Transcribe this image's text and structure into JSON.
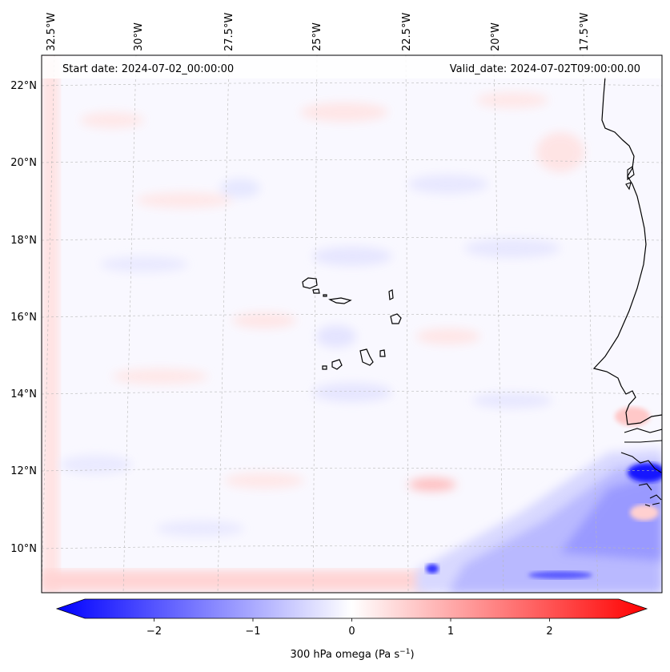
{
  "map": {
    "start_date": "Start date: 2024-07-02_00:00:00",
    "valid_date": "Valid_date: 2024-07-02T09:00:00.00",
    "lon_labels": [
      "32.5°W",
      "30°W",
      "27.5°W",
      "25°W",
      "22.5°W",
      "20°W",
      "17.5°W"
    ],
    "lat_labels": [
      "22°N",
      "20°N",
      "18°N",
      "16°N",
      "14°N",
      "12°N",
      "10°N"
    ],
    "field_variable": "300 hPa omega",
    "features": [
      "Cape Verde islands",
      "West African coastline (Mauritania, Senegal, Gambia, Guinea-Bissau)"
    ]
  },
  "colorbar": {
    "label": "300 hPa omega (Pa s",
    "label_sup": "−1",
    "label_tail": ")",
    "tick_labels": [
      "−2",
      "−1",
      "0",
      "1",
      "2"
    ],
    "ticks": [
      -2,
      -1,
      0,
      1,
      2
    ],
    "min": -2.7,
    "max": 2.7,
    "extend": "both",
    "color_low": "#0000ff",
    "color_mid": "#ffffff",
    "color_high": "#ff0000"
  }
}
